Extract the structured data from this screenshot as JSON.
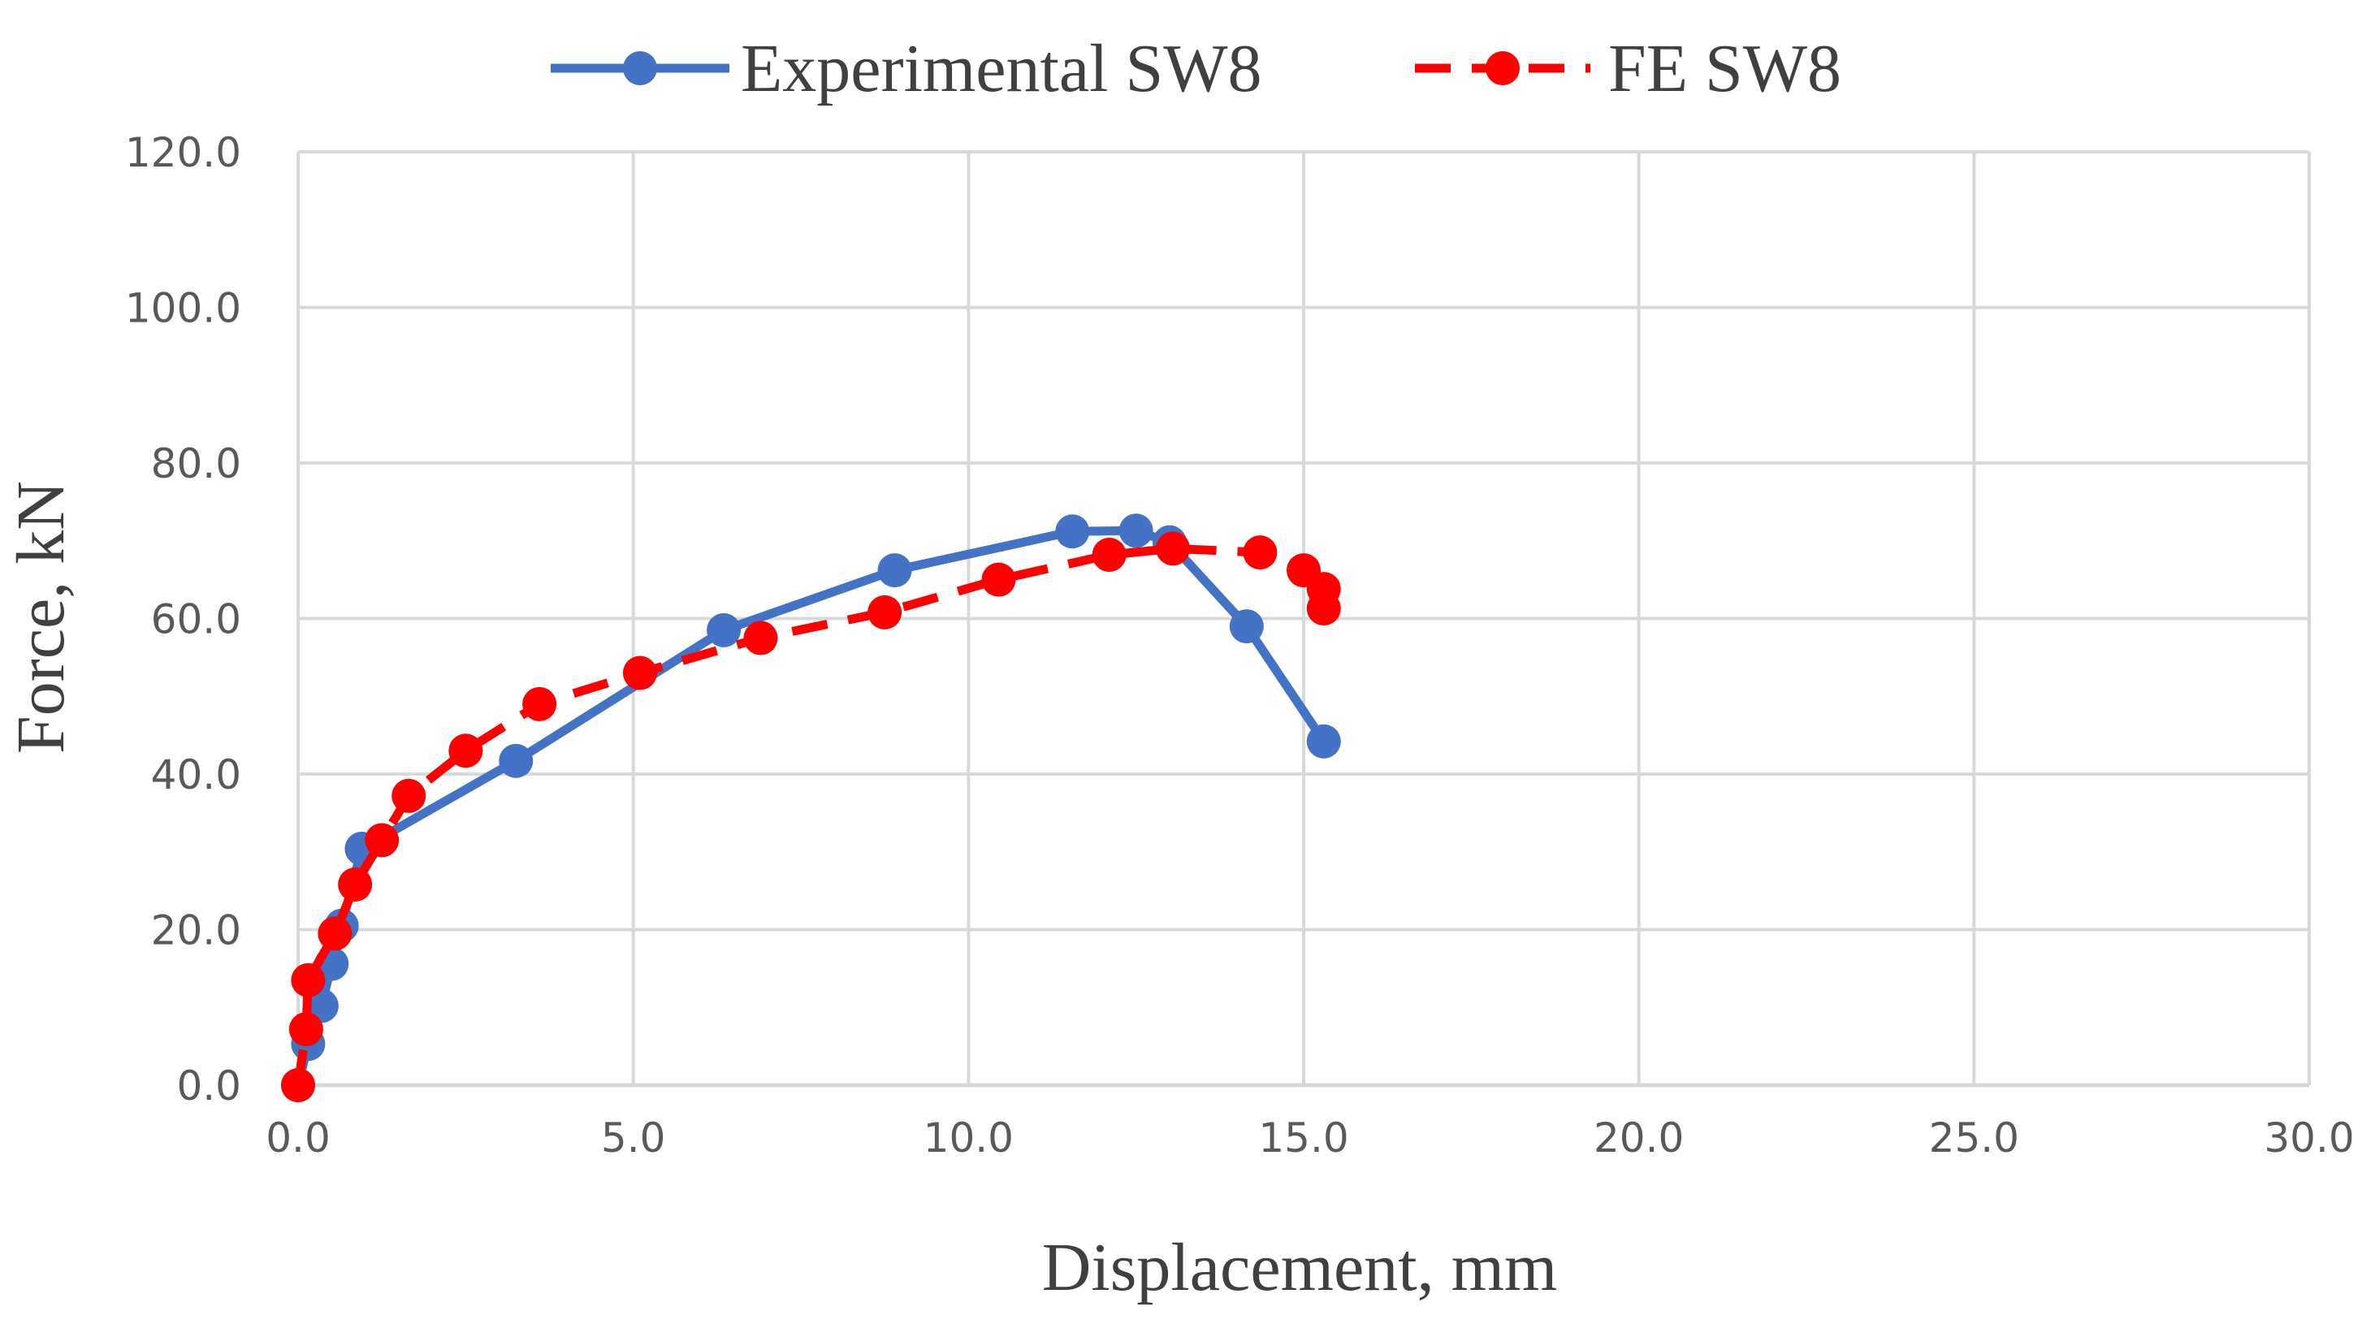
{
  "chart_data": {
    "type": "line",
    "title": "",
    "xlabel": "Displacement, mm",
    "ylabel": "Force, kN",
    "xlim": [
      0,
      30
    ],
    "ylim": [
      0,
      120
    ],
    "x_ticks": [
      "0.0",
      "5.0",
      "10.0",
      "15.0",
      "20.0",
      "25.0",
      "30.0"
    ],
    "y_ticks": [
      "0.0",
      "20.0",
      "40.0",
      "60.0",
      "80.0",
      "100.0",
      "120.0"
    ],
    "grid": true,
    "legend_position": "top",
    "series": [
      {
        "name": "Experimental SW8",
        "color": "#4472C4",
        "line_style": "solid",
        "marker": "circle",
        "x": [
          0.0,
          0.15,
          0.35,
          0.5,
          0.65,
          0.95,
          3.25,
          6.35,
          8.9,
          11.55,
          12.5,
          13.0,
          14.15,
          15.3
        ],
        "y": [
          0.0,
          5.3,
          10.2,
          15.6,
          20.5,
          30.4,
          41.7,
          58.5,
          66.2,
          71.2,
          71.3,
          69.8,
          59.0,
          44.2
        ]
      },
      {
        "name": "FE SW8",
        "color": "#FF0000",
        "line_style": "dashed",
        "marker": "circle",
        "x": [
          0.0,
          0.12,
          0.15,
          0.55,
          0.85,
          1.25,
          1.65,
          2.5,
          3.6,
          5.1,
          6.9,
          8.75,
          10.45,
          12.1,
          13.05,
          14.35,
          15.0,
          15.3,
          15.3
        ],
        "y": [
          0.0,
          7.2,
          13.5,
          19.5,
          25.8,
          31.5,
          37.2,
          43.0,
          49.0,
          53.0,
          57.5,
          60.8,
          65.0,
          68.2,
          69.0,
          68.5,
          66.2,
          63.8,
          61.3
        ]
      }
    ]
  }
}
